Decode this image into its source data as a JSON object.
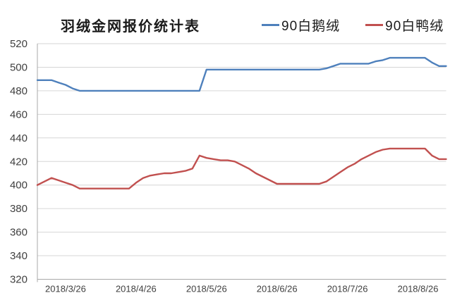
{
  "title": "羽绒金网报价统计表",
  "colors": {
    "background": "#FFFFFF",
    "gridline": "#D6D6D6",
    "axis_line": "#A8A8A8",
    "tick_text": "#404040",
    "title_text": "#1A1A1A",
    "series_blue": "#4E80BC",
    "series_red": "#C1504F"
  },
  "chart_data": {
    "type": "line",
    "title": "羽绒金网报价统计表",
    "xlabel": "",
    "ylabel": "",
    "ylim": [
      320,
      520
    ],
    "y_tick_step": 20,
    "grid": "horizontal",
    "legend_position": "top-right",
    "x_tick_labels": [
      "2018/3/26",
      "2018/4/26",
      "2018/5/26",
      "2018/6/26",
      "2018/7/26",
      "2018/8/26"
    ],
    "x_tick_point_indices": [
      4,
      14,
      24,
      34,
      44,
      54
    ],
    "series": [
      {
        "key": "goose",
        "name": "90白鹅绒",
        "color": "#4E80BC",
        "values": [
          489,
          489,
          489,
          487,
          485,
          482,
          480,
          480,
          480,
          480,
          480,
          480,
          480,
          480,
          480,
          480,
          480,
          480,
          480,
          480,
          480,
          480,
          480,
          480,
          498,
          498,
          498,
          498,
          498,
          498,
          498,
          498,
          498,
          498,
          498,
          498,
          498,
          498,
          498,
          498,
          498,
          499,
          501,
          503,
          503,
          503,
          503,
          503,
          505,
          506,
          508,
          508,
          508,
          508,
          508,
          508,
          504,
          501,
          501
        ]
      },
      {
        "key": "duck",
        "name": "90白鸭绒",
        "color": "#C1504F",
        "values": [
          400,
          403,
          406,
          404,
          402,
          400,
          397,
          397,
          397,
          397,
          397,
          397,
          397,
          397,
          402,
          406,
          408,
          409,
          410,
          410,
          411,
          412,
          414,
          425,
          423,
          422,
          421,
          421,
          420,
          417,
          414,
          410,
          407,
          404,
          401,
          401,
          401,
          401,
          401,
          401,
          401,
          403,
          407,
          411,
          415,
          418,
          422,
          425,
          428,
          430,
          431,
          431,
          431,
          431,
          431,
          431,
          425,
          422,
          422
        ]
      }
    ]
  }
}
